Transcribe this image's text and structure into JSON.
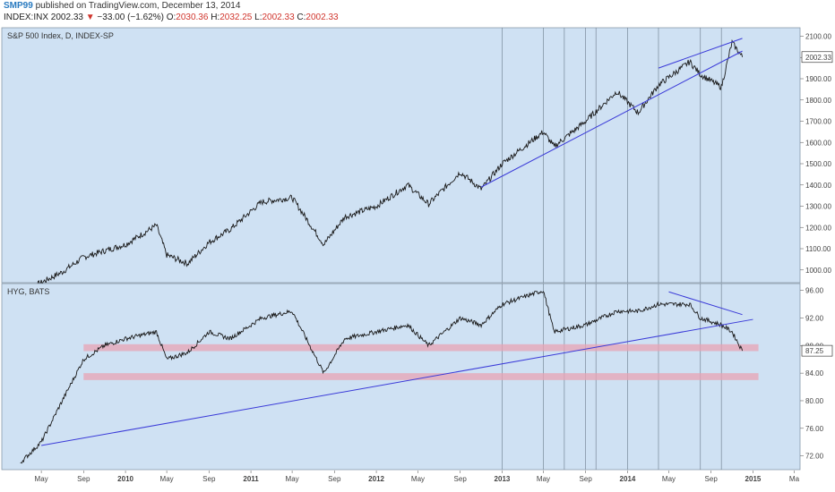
{
  "header": {
    "author": "SMP99",
    "published": "published on TradingView.com, December 13, 2014",
    "symbol": "INDEX:INX",
    "last": "2002.33",
    "arrow": "▼",
    "change": "−33.00 (−1.62%)",
    "o_label": "O:",
    "o_value": "2030.36",
    "h_label": "H:",
    "h_value": "2032.25",
    "l_label": "L:",
    "l_value": "2002.33",
    "c_label": "C:",
    "c_value": "2002.33"
  },
  "colors": {
    "pane_bg": "#cfe1f3",
    "series": "#1a1a1a",
    "trendline": "#3a3ad8",
    "zone": "#e8a3b4",
    "vline": "#6a7a8a"
  },
  "chart_data": [
    {
      "type": "line",
      "title": "S&P 500 Index, D, INDEX-SP",
      "last_value_label": "2002.33",
      "y_ticks": [
        1000,
        1100,
        1200,
        1300,
        1400,
        1500,
        1600,
        1700,
        1800,
        1900,
        2000,
        2100
      ],
      "y_tick_labels": [
        "1000.00",
        "1100.00",
        "1200.00",
        "1300.00",
        "1400.00",
        "1500.00",
        "1600.00",
        "1700.00",
        "1800.00",
        "1900.00",
        "2000.00",
        "2100.00"
      ],
      "ylim": [
        940,
        2140
      ],
      "series": [
        {
          "x": [
            "2009-03",
            "2009-05",
            "2009-07",
            "2009-09",
            "2009-11",
            "2010-01",
            "2010-04",
            "2010-05",
            "2010-07",
            "2010-09",
            "2010-11",
            "2011-02",
            "2011-05",
            "2011-08",
            "2011-10",
            "2012-01",
            "2012-04",
            "2012-06",
            "2012-09",
            "2012-11",
            "2013-01",
            "2013-05",
            "2013-06",
            "2013-09",
            "2013-12",
            "2014-02",
            "2014-04",
            "2014-07",
            "2014-08",
            "2014-10",
            "2014-11",
            "2014-12"
          ],
          "y": [
            900,
            940,
            990,
            1060,
            1090,
            1120,
            1210,
            1070,
            1030,
            1130,
            1190,
            1320,
            1340,
            1120,
            1250,
            1300,
            1400,
            1310,
            1460,
            1380,
            1500,
            1650,
            1580,
            1700,
            1840,
            1740,
            1870,
            1980,
            1920,
            1860,
            2070,
            2002
          ]
        }
      ],
      "trendlines": [
        {
          "from": [
            "2012-11",
            1390
          ],
          "to": [
            "2014-12",
            2030
          ]
        },
        {
          "from": [
            "2014-04",
            1950
          ],
          "to": [
            "2014-12",
            2090
          ]
        }
      ]
    },
    {
      "type": "line",
      "title": "HYG, BATS",
      "last_value_label": "87.25",
      "y_ticks": [
        72,
        76,
        80,
        84,
        88,
        92,
        96
      ],
      "y_tick_labels": [
        "72.00",
        "76.00",
        "80.00",
        "84.00",
        "88.00",
        "92.00",
        "96.00"
      ],
      "ylim": [
        70,
        97
      ],
      "series": [
        {
          "x": [
            "2009-03",
            "2009-05",
            "2009-07",
            "2009-09",
            "2009-11",
            "2010-01",
            "2010-04",
            "2010-05",
            "2010-07",
            "2010-09",
            "2010-11",
            "2011-02",
            "2011-05",
            "2011-08",
            "2011-10",
            "2012-01",
            "2012-04",
            "2012-06",
            "2012-09",
            "2012-11",
            "2013-01",
            "2013-05",
            "2013-06",
            "2013-09",
            "2013-12",
            "2014-02",
            "2014-04",
            "2014-07",
            "2014-08",
            "2014-10",
            "2014-11",
            "2014-12"
          ],
          "y": [
            71,
            74,
            80,
            86,
            88,
            89,
            90,
            86,
            87,
            90,
            89,
            92,
            93,
            84,
            89,
            90,
            91,
            88,
            92,
            91,
            94,
            96,
            90,
            91,
            93,
            93,
            94,
            94,
            92,
            91,
            90,
            87.25
          ]
        }
      ],
      "trendlines": [
        {
          "from": [
            "2009-05",
            73.5
          ],
          "to": [
            "2015-01",
            91.8
          ]
        },
        {
          "from": [
            "2014-05",
            95.8
          ],
          "to": [
            "2014-12",
            92.5
          ]
        }
      ],
      "zones": [
        {
          "low": 87.2,
          "high": 88.2
        },
        {
          "low": 83.0,
          "high": 84.0
        }
      ]
    }
  ],
  "x_axis": {
    "labels": [
      "May",
      "Sep",
      "2010",
      "May",
      "Sep",
      "2011",
      "May",
      "Sep",
      "2012",
      "May",
      "Sep",
      "2013",
      "May",
      "Sep",
      "2014",
      "May",
      "Sep",
      "2015",
      "Ma"
    ],
    "dates": [
      "2009-05",
      "2009-09",
      "2010-01",
      "2010-05",
      "2010-09",
      "2011-01",
      "2011-05",
      "2011-09",
      "2012-01",
      "2012-05",
      "2012-09",
      "2013-01",
      "2013-05",
      "2013-09",
      "2014-01",
      "2014-05",
      "2014-09",
      "2015-01",
      "2015-05"
    ],
    "vertical_lines": [
      "2013-01",
      "2013-05",
      "2013-07",
      "2013-09",
      "2013-10",
      "2014-01",
      "2014-04",
      "2014-08",
      "2014-10"
    ]
  }
}
